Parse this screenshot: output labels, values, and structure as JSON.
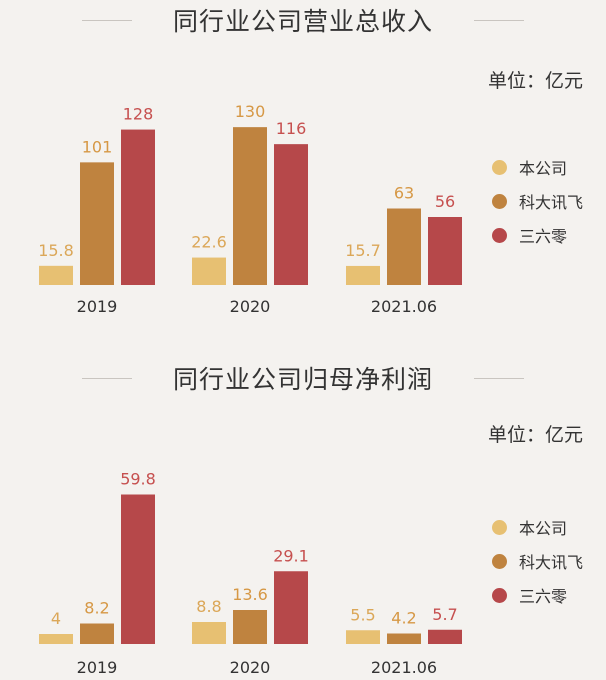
{
  "colors": {
    "本公司": "#e7c072",
    "科大讯飞": "#bf833f",
    "三六零": "#b6484a",
    "label_本公司": "#dba758",
    "label_科大讯飞": "#d69845",
    "label_三六零": "#c6504f"
  },
  "chart_data": [
    {
      "type": "bar",
      "title": "同行业公司营业总收入",
      "unit_label": "单位：亿元",
      "categories": [
        "2019",
        "2020",
        "2021.06"
      ],
      "series": [
        {
          "name": "本公司",
          "values": [
            15.8,
            22.6,
            15.7
          ],
          "labels": [
            "15.8",
            "22.6",
            "15.7"
          ]
        },
        {
          "name": "科大讯飞",
          "values": [
            101,
            130,
            63
          ],
          "labels": [
            "101",
            "130",
            "63"
          ]
        },
        {
          "name": "三六零",
          "values": [
            128,
            116,
            56
          ],
          "labels": [
            "128",
            "116",
            "56"
          ]
        }
      ],
      "legend": [
        "本公司",
        "科大讯飞",
        "三六零"
      ],
      "legend_position": "right",
      "ylim": [
        0,
        140
      ]
    },
    {
      "type": "bar",
      "title": "同行业公司归母净利润",
      "unit_label": "单位：亿元",
      "categories": [
        "2019",
        "2020",
        "2021.06"
      ],
      "series": [
        {
          "name": "本公司",
          "values": [
            4,
            8.8,
            5.5
          ],
          "labels": [
            "4",
            "8.8",
            "5.5"
          ]
        },
        {
          "name": "科大讯飞",
          "values": [
            8.2,
            13.6,
            4.2
          ],
          "labels": [
            "8.2",
            "13.6",
            "4.2"
          ]
        },
        {
          "name": "三六零",
          "values": [
            59.8,
            29.1,
            5.7
          ],
          "labels": [
            "59.8",
            "29.1",
            "5.7"
          ]
        }
      ],
      "legend": [
        "本公司",
        "科大讯飞",
        "三六零"
      ],
      "legend_position": "right",
      "ylim": [
        0,
        62
      ]
    }
  ]
}
